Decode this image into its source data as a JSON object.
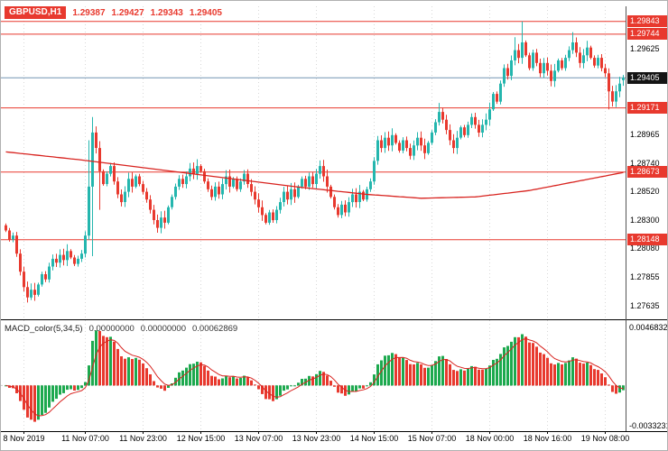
{
  "header": {
    "symbol": "GBPUSD,H1",
    "open": "1.29387",
    "high": "1.29427",
    "low": "1.29343",
    "close": "1.29405"
  },
  "macd_header": {
    "name": "MACD_color(5,34,5)",
    "values": [
      "0.00000000",
      "0.00000000",
      "0.00062869"
    ]
  },
  "colors": {
    "up": "#24b6ae",
    "down": "#e8392e",
    "ma": "#d8231f",
    "level": "#e8392e",
    "current_line": "#7296b4",
    "hist_up": "#1ca94e",
    "hist_down": "#e8392e",
    "signal": "#d8231f",
    "grid": "#d8d8d8"
  },
  "price_axis": {
    "ticks": [
      "1.29625",
      "1.28965",
      "1.28740",
      "1.28520",
      "1.28300",
      "1.28080",
      "1.27855",
      "1.27635"
    ],
    "level_tags": [
      "1.29843",
      "1.29744",
      "1.29171",
      "1.28673",
      "1.28148"
    ],
    "current_tag": "1.29405"
  },
  "time_axis": {
    "labels": [
      "8 Nov 2019",
      "11 Nov 07:00",
      "11 Nov 23:00",
      "12 Nov 15:00",
      "13 Nov 07:00",
      "13 Nov 23:00",
      "14 Nov 15:00",
      "15 Nov 07:00",
      "18 Nov 00:00",
      "18 Nov 16:00",
      "19 Nov 08:00"
    ],
    "indices": [
      5,
      22,
      38,
      54,
      70,
      86,
      102,
      118,
      134,
      150,
      166
    ]
  },
  "chart_data": [
    {
      "type": "candlestick",
      "title": "GBPUSD,H1",
      "ylim": [
        1.2753,
        1.2996
      ],
      "levels": [
        1.29843,
        1.29744,
        1.29171,
        1.28673,
        1.28148
      ],
      "current_price": 1.29405,
      "first_open": 1.2826,
      "closes": [
        1.2822,
        1.2815,
        1.2818,
        1.2804,
        1.279,
        1.2778,
        1.277,
        1.2776,
        1.2772,
        1.278,
        1.2788,
        1.2784,
        1.2794,
        1.28,
        1.2797,
        1.2803,
        1.2799,
        1.2806,
        1.2801,
        1.2796,
        1.28,
        1.2804,
        1.2818,
        1.2856,
        1.2898,
        1.2886,
        1.2868,
        1.2858,
        1.2866,
        1.2872,
        1.286,
        1.285,
        1.2844,
        1.2852,
        1.2862,
        1.2856,
        1.2864,
        1.2858,
        1.2852,
        1.2846,
        1.2838,
        1.283,
        1.2824,
        1.2832,
        1.2828,
        1.284,
        1.2848,
        1.2856,
        1.2862,
        1.2858,
        1.2864,
        1.287,
        1.2866,
        1.2872,
        1.2868,
        1.286,
        1.2854,
        1.2848,
        1.2856,
        1.285,
        1.2858,
        1.2864,
        1.2856,
        1.2862,
        1.2854,
        1.286,
        1.2866,
        1.2858,
        1.2852,
        1.2846,
        1.284,
        1.2834,
        1.2828,
        1.2836,
        1.283,
        1.2838,
        1.2844,
        1.2852,
        1.2846,
        1.2854,
        1.2848,
        1.2856,
        1.2862,
        1.2856,
        1.2864,
        1.2858,
        1.2866,
        1.2872,
        1.2864,
        1.2856,
        1.2848,
        1.284,
        1.2834,
        1.2842,
        1.2836,
        1.2844,
        1.285,
        1.2844,
        1.2852,
        1.2846,
        1.2854,
        1.286,
        1.2876,
        1.2892,
        1.2886,
        1.2894,
        1.2888,
        1.2896,
        1.289,
        1.2884,
        1.2892,
        1.2886,
        1.288,
        1.2888,
        1.2894,
        1.2888,
        1.2882,
        1.289,
        1.2898,
        1.2906,
        1.2914,
        1.2908,
        1.29,
        1.2892,
        1.2886,
        1.2894,
        1.2902,
        1.2896,
        1.2904,
        1.291,
        1.2904,
        1.2898,
        1.2904,
        1.2908,
        1.2916,
        1.2928,
        1.2922,
        1.2936,
        1.2948,
        1.2942,
        1.2954,
        1.2962,
        1.2956,
        1.2968,
        1.2958,
        1.2948,
        1.296,
        1.2952,
        1.2944,
        1.2952,
        1.2946,
        1.2938,
        1.2946,
        1.2954,
        1.2948,
        1.2956,
        1.2962,
        1.2968,
        1.296,
        1.2952,
        1.2958,
        1.2964,
        1.2956,
        1.295,
        1.2956,
        1.2948,
        1.2944,
        1.293,
        1.2922,
        1.293,
        1.2936,
        1.29405
      ],
      "wick_overrides": {
        "6": {
          "l": 1.2766
        },
        "7": {
          "l": 1.2768
        },
        "23": {
          "h": 1.2892
        },
        "24": {
          "h": 1.291,
          "l": 1.2802
        },
        "26": {
          "l": 1.2838
        },
        "120": {
          "h": 1.2921
        },
        "141": {
          "h": 1.2972
        },
        "143": {
          "h": 1.29843
        },
        "157": {
          "h": 1.2976
        },
        "167": {
          "l": 1.2916
        },
        "171": {
          "o": 1.29387,
          "h": 1.29427,
          "l": 1.29343,
          "c": 1.29405
        }
      },
      "ma_points": [
        [
          0,
          1.2883
        ],
        [
          20,
          1.2877
        ],
        [
          40,
          1.287
        ],
        [
          60,
          1.2863
        ],
        [
          80,
          1.2856
        ],
        [
          100,
          1.285
        ],
        [
          115,
          1.2847
        ],
        [
          130,
          1.2848
        ],
        [
          145,
          1.2853
        ],
        [
          158,
          1.286
        ],
        [
          171,
          1.2867
        ]
      ]
    },
    {
      "type": "bar",
      "title": "MACD_color(5,34,5)",
      "ylim": [
        -0.0033231,
        0.0046832
      ],
      "axis_labels": [
        "0.0046832",
        "-0.0033231"
      ],
      "fast_period": 5,
      "slow_period": 34,
      "signal_period": 5
    }
  ]
}
